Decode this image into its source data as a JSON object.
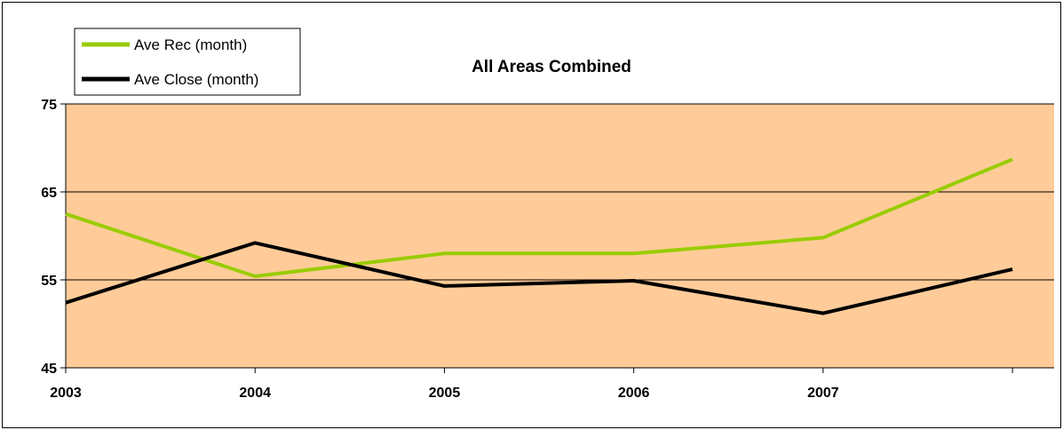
{
  "chart_data": {
    "type": "line",
    "title": "All Areas Combined",
    "xlabel": "",
    "ylabel": "",
    "x": [
      "2003",
      "2004",
      "2005",
      "2006",
      "2007",
      ""
    ],
    "ylim": [
      45,
      75
    ],
    "yticks": [
      45,
      55,
      65,
      75
    ],
    "grid": true,
    "legend_position": "top-left",
    "plot_background": "#FFCC99",
    "series": [
      {
        "name": "Ave Rec (month)",
        "color": "#99CC00",
        "values": [
          62.5,
          55.4,
          58.0,
          58.0,
          59.8,
          68.7
        ]
      },
      {
        "name": "Ave Close (month)",
        "color": "#000000",
        "values": [
          52.4,
          59.2,
          54.3,
          54.9,
          51.2,
          56.2
        ]
      }
    ]
  }
}
